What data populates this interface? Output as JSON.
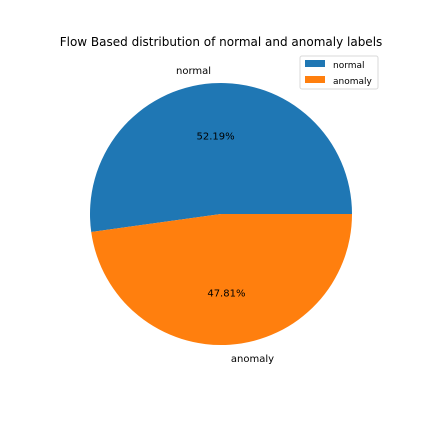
{
  "chart_data": {
    "type": "pie",
    "title": "Flow Based distribution of normal and anomaly labels",
    "labels": [
      "normal",
      "anomaly"
    ],
    "values": [
      52.19,
      47.81
    ],
    "percent_labels": [
      "52.19%",
      "47.81%"
    ],
    "colors": [
      "#1f77b4",
      "#ff7f0e"
    ],
    "legend": {
      "placement": "top-right",
      "entries": [
        "normal",
        "anomaly"
      ]
    }
  }
}
